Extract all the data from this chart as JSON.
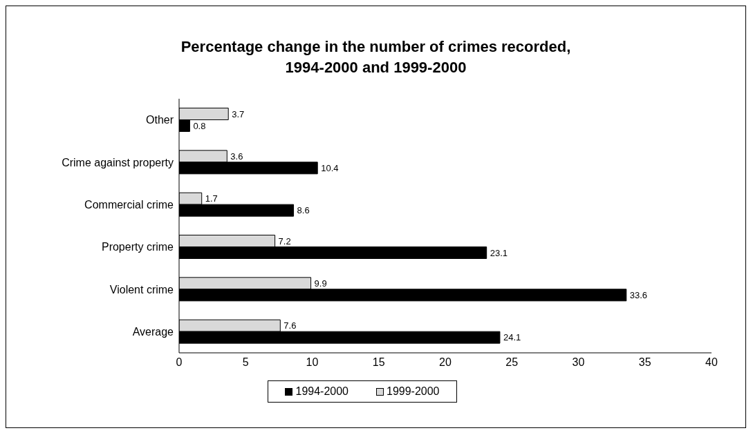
{
  "chart_data": {
    "type": "bar",
    "orientation": "horizontal",
    "title": "Percentage change in the number of crimes recorded, 1994-2000 and 1999-2000",
    "categories": [
      "Other",
      "Crime against property",
      "Commercial crime",
      "Property crime",
      "Violent crime",
      "Average"
    ],
    "series": [
      {
        "name": "1994-2000",
        "color": "#000000",
        "values": [
          0.8,
          10.4,
          8.6,
          23.1,
          33.6,
          24.1
        ]
      },
      {
        "name": "1999-2000",
        "color": "#d9d9d9",
        "values": [
          3.7,
          3.6,
          1.7,
          7.2,
          9.9,
          7.6
        ]
      }
    ],
    "xlim": [
      0,
      40
    ],
    "xticks": [
      0,
      5,
      10,
      15,
      20,
      25,
      30,
      35,
      40
    ],
    "grid": false,
    "legend": "bottom",
    "data_labels": true
  }
}
